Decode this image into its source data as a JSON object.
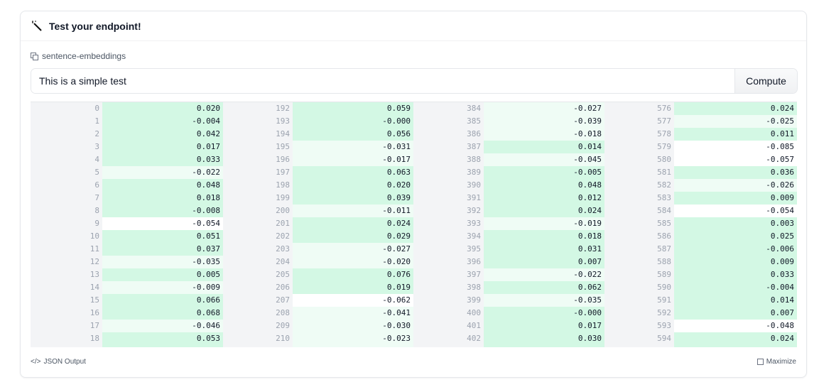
{
  "header": {
    "title": "Test your endpoint!",
    "icon": "magic-wand-icon"
  },
  "model": {
    "name": "sentence-embeddings",
    "icon": "model-icon"
  },
  "input": {
    "value": "This is a simple test",
    "button_label": "Compute"
  },
  "colors": {
    "dark": "#d3f8e4",
    "light": "#effcf5",
    "none": "#ffffff",
    "index_bg": "#f3f4f6"
  },
  "table": {
    "columns": [
      {
        "indices": [
          0,
          1,
          2,
          3,
          4,
          5,
          6,
          7,
          8,
          9,
          10,
          11,
          12,
          13,
          14,
          15,
          16,
          17,
          18
        ],
        "values": [
          "0.020",
          "-0.004",
          "0.042",
          "0.017",
          "0.033",
          "-0.022",
          "0.048",
          "0.018",
          "-0.008",
          "-0.054",
          "0.051",
          "0.037",
          "-0.035",
          "0.005",
          "-0.009",
          "0.066",
          "0.068",
          "-0.046",
          "0.053"
        ],
        "shades": [
          "dark",
          "dark",
          "dark",
          "dark",
          "dark",
          "light",
          "dark",
          "dark",
          "dark",
          "none",
          "dark",
          "dark",
          "light",
          "dark",
          "light",
          "dark",
          "dark",
          "light",
          "dark"
        ]
      },
      {
        "indices": [
          192,
          193,
          194,
          195,
          196,
          197,
          198,
          199,
          200,
          201,
          202,
          203,
          204,
          205,
          206,
          207,
          208,
          209,
          210
        ],
        "values": [
          "0.059",
          "-0.000",
          "0.056",
          "-0.031",
          "-0.017",
          "0.063",
          "0.020",
          "0.039",
          "-0.011",
          "0.024",
          "0.029",
          "-0.027",
          "-0.020",
          "0.076",
          "0.019",
          "-0.062",
          "-0.041",
          "-0.030",
          "-0.023"
        ],
        "shades": [
          "dark",
          "dark",
          "dark",
          "light",
          "light",
          "dark",
          "dark",
          "dark",
          "light",
          "dark",
          "dark",
          "light",
          "light",
          "dark",
          "dark",
          "none",
          "light",
          "light",
          "light"
        ]
      },
      {
        "indices": [
          384,
          385,
          386,
          387,
          388,
          389,
          390,
          391,
          392,
          393,
          394,
          395,
          396,
          397,
          398,
          399,
          400,
          401,
          402
        ],
        "values": [
          "-0.027",
          "-0.039",
          "-0.018",
          "0.014",
          "-0.045",
          "-0.005",
          "0.048",
          "0.012",
          "0.024",
          "-0.019",
          "0.018",
          "0.031",
          "0.007",
          "-0.022",
          "0.062",
          "-0.035",
          "-0.000",
          "0.017",
          "0.030"
        ],
        "shades": [
          "light",
          "light",
          "light",
          "dark",
          "light",
          "dark",
          "dark",
          "dark",
          "dark",
          "light",
          "dark",
          "dark",
          "dark",
          "light",
          "dark",
          "light",
          "dark",
          "dark",
          "dark"
        ]
      },
      {
        "indices": [
          576,
          577,
          578,
          579,
          580,
          581,
          582,
          583,
          584,
          585,
          586,
          587,
          588,
          589,
          590,
          591,
          592,
          593,
          594
        ],
        "values": [
          "0.024",
          "-0.025",
          "0.011",
          "-0.085",
          "-0.057",
          "0.036",
          "-0.026",
          "0.009",
          "-0.054",
          "0.003",
          "0.025",
          "-0.006",
          "0.009",
          "0.033",
          "-0.004",
          "0.014",
          "0.007",
          "-0.048",
          "0.024"
        ],
        "shades": [
          "dark",
          "light",
          "dark",
          "none",
          "none",
          "dark",
          "light",
          "dark",
          "none",
          "dark",
          "dark",
          "dark",
          "dark",
          "dark",
          "dark",
          "dark",
          "dark",
          "none",
          "dark"
        ]
      }
    ]
  },
  "footer": {
    "json_output": "JSON Output",
    "maximize": "Maximize"
  }
}
